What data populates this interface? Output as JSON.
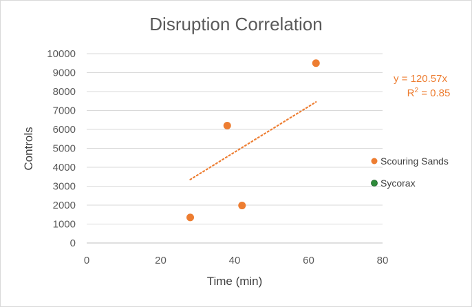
{
  "chart_data": {
    "type": "scatter",
    "title": "Disruption Correlation",
    "xlabel": "Time (min)",
    "ylabel": "Controls",
    "xlim": [
      0,
      80
    ],
    "ylim": [
      0,
      10000
    ],
    "xticks": [
      0,
      20,
      40,
      60,
      80
    ],
    "yticks": [
      0,
      1000,
      2000,
      3000,
      4000,
      5000,
      6000,
      7000,
      8000,
      9000,
      10000
    ],
    "grid": true,
    "legend_position": "right",
    "series": [
      {
        "name": "Scouring Sands",
        "color": "#ed7d31",
        "points": [
          {
            "x": 28,
            "y": 1350
          },
          {
            "x": 38,
            "y": 6200
          },
          {
            "x": 42,
            "y": 1980
          },
          {
            "x": 62,
            "y": 9500
          }
        ]
      },
      {
        "name": "Sycorax",
        "color": "#2e8b3a",
        "points": []
      }
    ],
    "trendline": {
      "type": "linear",
      "color": "#ed7d31",
      "x_range": [
        28,
        62
      ],
      "y_range": [
        3350,
        7450
      ],
      "equation": "y = 120.57x",
      "r_squared_label": "R",
      "r_squared_sup": "2",
      "r_squared_value": " = 0.85"
    }
  }
}
